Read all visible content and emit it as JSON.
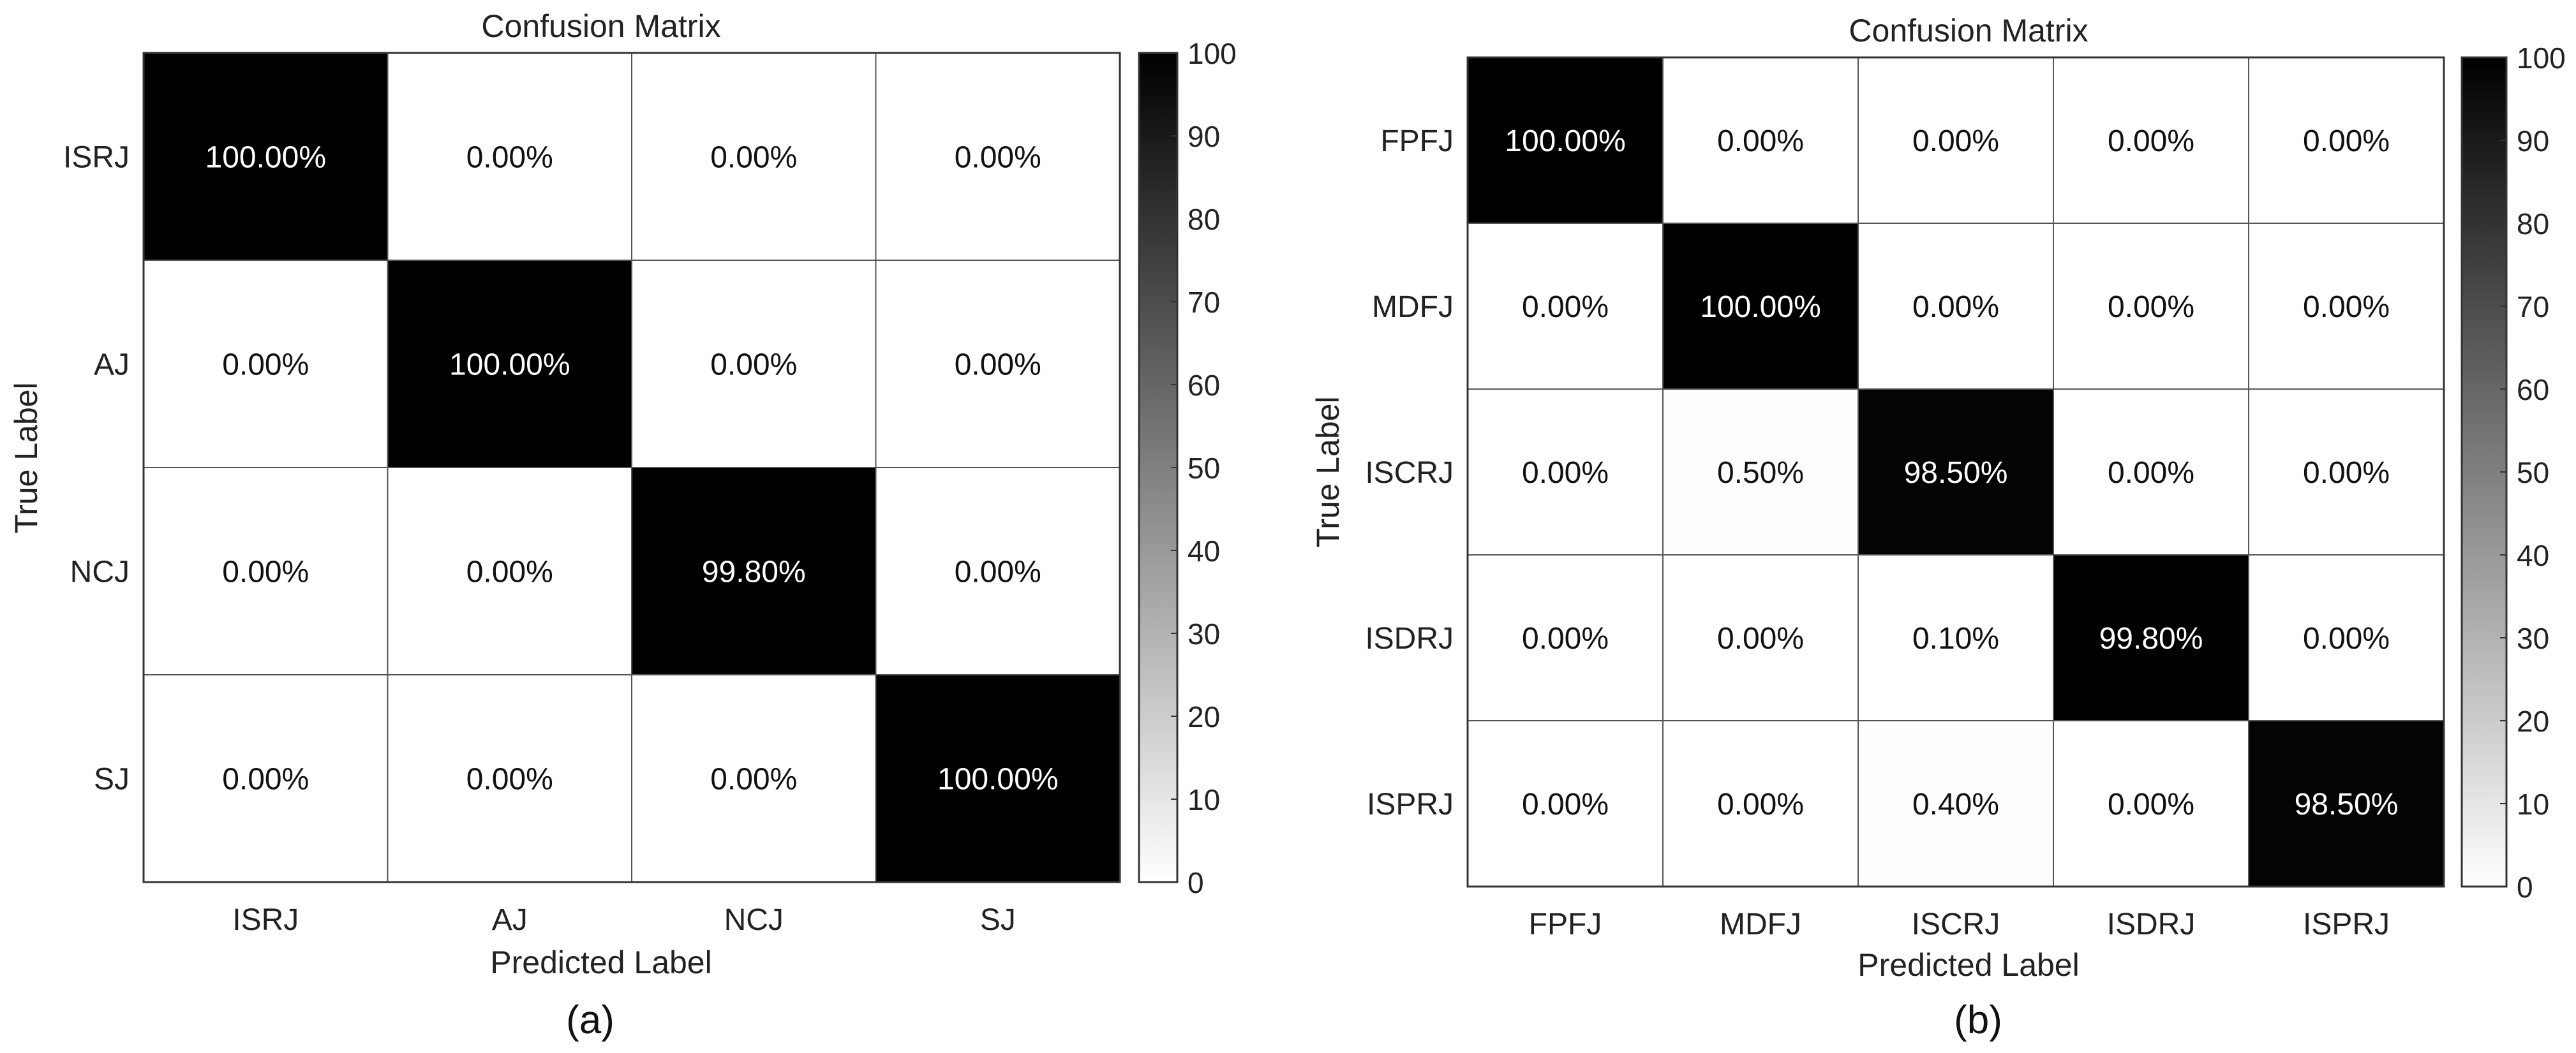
{
  "chart_data": [
    {
      "type": "heatmap",
      "title": "Confusion Matrix",
      "xlabel": "Predicted Label",
      "ylabel": "True Label",
      "caption": "(a)",
      "categories": [
        "ISRJ",
        "AJ",
        "NCJ",
        "SJ"
      ],
      "values": [
        [
          100.0,
          0.0,
          0.0,
          0.0
        ],
        [
          0.0,
          100.0,
          0.0,
          0.0
        ],
        [
          0.0,
          0.0,
          99.8,
          0.0
        ],
        [
          0.0,
          0.0,
          0.0,
          100.0
        ]
      ],
      "cell_labels": [
        [
          "100.00%",
          "0.00%",
          "0.00%",
          "0.00%"
        ],
        [
          "0.00%",
          "100.00%",
          "0.00%",
          "0.00%"
        ],
        [
          "0.00%",
          "0.00%",
          "99.80%",
          "0.00%"
        ],
        [
          "0.00%",
          "0.00%",
          "0.00%",
          "100.00%"
        ]
      ],
      "colorbar": {
        "range": [
          0,
          100
        ],
        "ticks": [
          "0",
          "10",
          "20",
          "30",
          "40",
          "50",
          "60",
          "70",
          "80",
          "90",
          "100"
        ],
        "colormap": "grayscale (0 = white, 100 = black)"
      },
      "colors": {
        "low": "#ffffff",
        "high": "#000000"
      }
    },
    {
      "type": "heatmap",
      "title": "Confusion Matrix",
      "xlabel": "Predicted Label",
      "ylabel": "True Label",
      "caption": "(b)",
      "categories": [
        "FPFJ",
        "MDFJ",
        "ISCRJ",
        "ISDRJ",
        "ISPRJ"
      ],
      "values": [
        [
          100.0,
          0.0,
          0.0,
          0.0,
          0.0
        ],
        [
          0.0,
          100.0,
          0.0,
          0.0,
          0.0
        ],
        [
          0.0,
          0.5,
          98.5,
          0.0,
          0.0
        ],
        [
          0.0,
          0.0,
          0.1,
          99.8,
          0.0
        ],
        [
          0.0,
          0.0,
          0.4,
          0.0,
          98.5
        ]
      ],
      "cell_labels": [
        [
          "100.00%",
          "0.00%",
          "0.00%",
          "0.00%",
          "0.00%"
        ],
        [
          "0.00%",
          "100.00%",
          "0.00%",
          "0.00%",
          "0.00%"
        ],
        [
          "0.00%",
          "0.50%",
          "98.50%",
          "0.00%",
          "0.00%"
        ],
        [
          "0.00%",
          "0.00%",
          "0.10%",
          "99.80%",
          "0.00%"
        ],
        [
          "0.00%",
          "0.00%",
          "0.40%",
          "0.00%",
          "98.50%"
        ]
      ],
      "colorbar": {
        "range": [
          0,
          100
        ],
        "ticks": [
          "0",
          "10",
          "20",
          "30",
          "40",
          "50",
          "60",
          "70",
          "80",
          "90",
          "100"
        ],
        "colormap": "grayscale (0 = white, 100 = black)"
      },
      "colors": {
        "low": "#ffffff",
        "high": "#000000"
      }
    }
  ]
}
